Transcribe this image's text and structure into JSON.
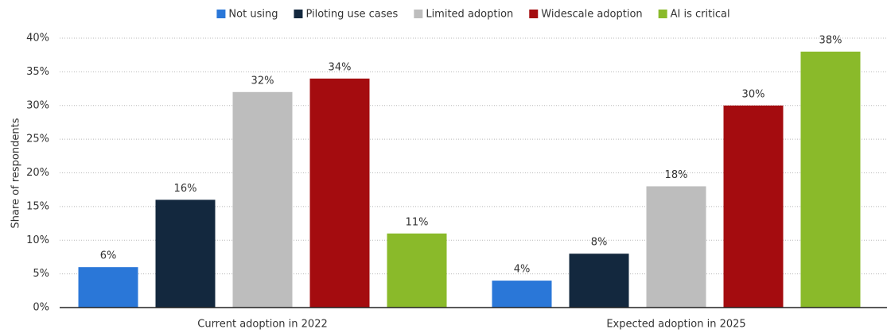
{
  "chart_data": {
    "type": "bar",
    "y_label": "Share of respondents",
    "categories": [
      "Current adoption in 2022",
      "Expected adoption in 2025"
    ],
    "series": [
      {
        "name": "Not using",
        "color": "#2a77d8",
        "values": [
          6,
          4
        ],
        "value_labels": [
          "6%",
          "4%"
        ]
      },
      {
        "name": "Piloting use cases",
        "color": "#13283e",
        "values": [
          16,
          8
        ],
        "value_labels": [
          "16%",
          "8%"
        ]
      },
      {
        "name": "Limited adoption",
        "color": "#bdbdbd",
        "values": [
          32,
          18
        ],
        "value_labels": [
          "32%",
          "18%"
        ]
      },
      {
        "name": "Widescale adoption",
        "color": "#a40c0f",
        "values": [
          34,
          30
        ],
        "value_labels": [
          "34%",
          "30%"
        ]
      },
      {
        "name": "AI is critical",
        "color": "#8aba2a",
        "values": [
          11,
          38
        ],
        "value_labels": [
          "11%",
          "38%"
        ]
      }
    ],
    "ylim": [
      0,
      40
    ],
    "yticks": [
      {
        "value": 0,
        "label": "0%"
      },
      {
        "value": 5,
        "label": "5%"
      },
      {
        "value": 10,
        "label": "10%"
      },
      {
        "value": 15,
        "label": "15%"
      },
      {
        "value": 20,
        "label": "20%"
      },
      {
        "value": 25,
        "label": "25%"
      },
      {
        "value": 30,
        "label": "30%"
      },
      {
        "value": 35,
        "label": "35%"
      },
      {
        "value": 40,
        "label": "40%"
      }
    ],
    "grid": true,
    "legend": "top"
  }
}
